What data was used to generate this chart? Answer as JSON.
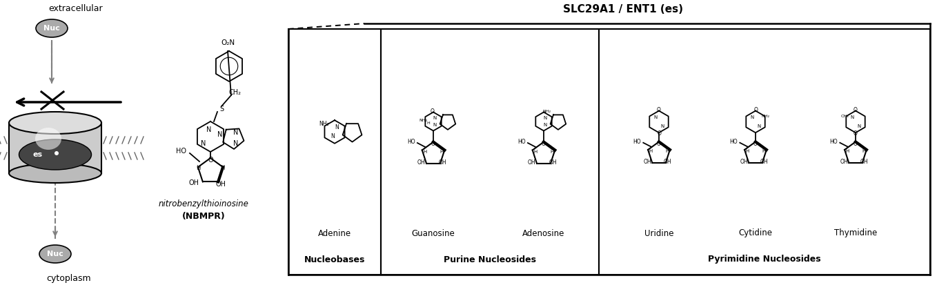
{
  "title": "SLC29A1 / ENT1 (es)",
  "left_label_top": "extracellular",
  "left_label_bottom": "cytoplasm",
  "left_label_es": "es",
  "left_label_nuc": "Nuc",
  "inhibitor_name": "nitrobenzylthioinosine",
  "inhibitor_abbr": "(NBMPR)",
  "section1_title": "Nucleobases",
  "section1_compound": "Adenine",
  "section2_title": "Purine Nucleosides",
  "section2_compounds": [
    "Guanosine",
    "Adenosine"
  ],
  "section3_title": "Pyrimidine Nucleosides",
  "section3_compounds": [
    "Uridine",
    "Cytidine",
    "Thymidine"
  ],
  "bg_color": "#ffffff",
  "text_color": "#000000",
  "line_color": "#000000",
  "gray_color": "#888888",
  "light_gray": "#cccccc",
  "dark_gray": "#555555"
}
